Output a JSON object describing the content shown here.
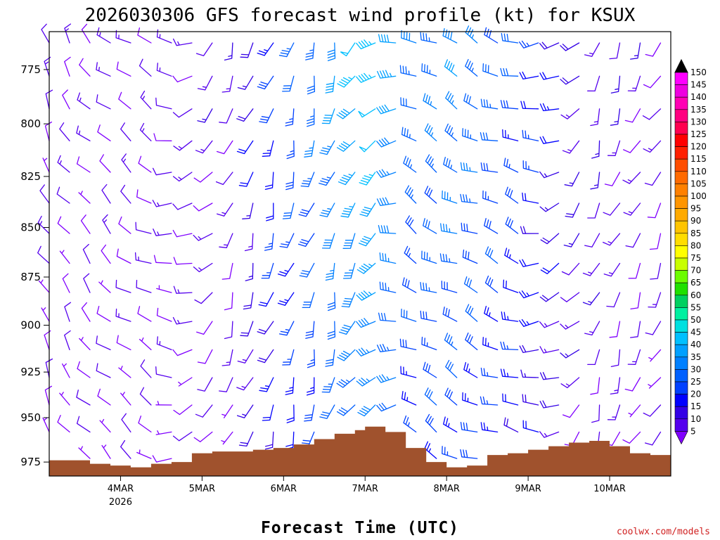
{
  "title": "2026030306 GFS forecast wind profile (kt) for KSUX",
  "credit": "coolwx.com/models",
  "chart_data": {
    "type": "wind-profile",
    "title": "2026030306 GFS forecast wind profile (kt) for KSUX",
    "xlabel": "Forecast Time (UTC)",
    "ylabel": "",
    "x_ticks": [
      {
        "label": "4MAR",
        "sub": "2026",
        "hour": 21
      },
      {
        "label": "5MAR",
        "sub": "",
        "hour": 45
      },
      {
        "label": "6MAR",
        "sub": "",
        "hour": 69
      },
      {
        "label": "7MAR",
        "sub": "",
        "hour": 93
      },
      {
        "label": "8MAR",
        "sub": "",
        "hour": 117
      },
      {
        "label": "9MAR",
        "sub": "",
        "hour": 141
      },
      {
        "label": "10MAR",
        "sub": "",
        "hour": 165
      }
    ],
    "xlim_hours": [
      0,
      183
    ],
    "y_ticks": [
      775,
      800,
      825,
      850,
      875,
      900,
      925,
      950,
      975
    ],
    "ylim_hPa": [
      983,
      758
    ],
    "y_scale": "log",
    "time_step_hours": 6,
    "levels_hPa": [
      763,
      778,
      793,
      808,
      823,
      838,
      853,
      868,
      883,
      898,
      913,
      928,
      943,
      958,
      973
    ],
    "speed_stops_kt": [
      {
        "hour": 0,
        "speed": 10
      },
      {
        "hour": 54,
        "speed": 12
      },
      {
        "hour": 63,
        "speed": 22
      },
      {
        "hour": 78,
        "speed": 32
      },
      {
        "hour": 90,
        "speed": 42
      },
      {
        "hour": 96,
        "speed": 45
      },
      {
        "hour": 108,
        "speed": 32
      },
      {
        "hour": 120,
        "speed": 35
      },
      {
        "hour": 138,
        "speed": 27
      },
      {
        "hour": 156,
        "speed": 15
      },
      {
        "hour": 183,
        "speed": 10
      }
    ],
    "direction_stops_deg": [
      {
        "hour": 0,
        "dir": 330
      },
      {
        "hour": 30,
        "dir": 300
      },
      {
        "hour": 54,
        "dir": 200
      },
      {
        "hour": 84,
        "dir": 195
      },
      {
        "hour": 96,
        "dir": 230
      },
      {
        "hour": 108,
        "dir": 300
      },
      {
        "hour": 138,
        "dir": 290
      },
      {
        "hour": 162,
        "dir": 200
      },
      {
        "hour": 183,
        "dir": 210
      }
    ],
    "surface_pressure_hPa": [
      {
        "hour": 0,
        "p": 974
      },
      {
        "hour": 6,
        "p": 974
      },
      {
        "hour": 12,
        "p": 976
      },
      {
        "hour": 18,
        "p": 977
      },
      {
        "hour": 24,
        "p": 978
      },
      {
        "hour": 30,
        "p": 976
      },
      {
        "hour": 36,
        "p": 975
      },
      {
        "hour": 42,
        "p": 970
      },
      {
        "hour": 48,
        "p": 969
      },
      {
        "hour": 54,
        "p": 969
      },
      {
        "hour": 60,
        "p": 968
      },
      {
        "hour": 66,
        "p": 967
      },
      {
        "hour": 72,
        "p": 965
      },
      {
        "hour": 78,
        "p": 962
      },
      {
        "hour": 84,
        "p": 959
      },
      {
        "hour": 90,
        "p": 957
      },
      {
        "hour": 93,
        "p": 955
      },
      {
        "hour": 99,
        "p": 958
      },
      {
        "hour": 105,
        "p": 967
      },
      {
        "hour": 111,
        "p": 975
      },
      {
        "hour": 117,
        "p": 978
      },
      {
        "hour": 123,
        "p": 977
      },
      {
        "hour": 129,
        "p": 971
      },
      {
        "hour": 135,
        "p": 970
      },
      {
        "hour": 141,
        "p": 968
      },
      {
        "hour": 147,
        "p": 966
      },
      {
        "hour": 153,
        "p": 964
      },
      {
        "hour": 159,
        "p": 963
      },
      {
        "hour": 165,
        "p": 966
      },
      {
        "hour": 171,
        "p": 970
      },
      {
        "hour": 177,
        "p": 971
      },
      {
        "hour": 183,
        "p": 973
      }
    ],
    "surface_color": "#a0522d",
    "colorbar": {
      "unit": "kt",
      "labels": [
        150,
        145,
        140,
        135,
        130,
        125,
        120,
        115,
        110,
        105,
        100,
        95,
        90,
        85,
        80,
        75,
        70,
        65,
        60,
        55,
        50,
        45,
        40,
        35,
        30,
        25,
        20,
        15,
        10,
        5
      ],
      "colors": [
        "#ff00ff",
        "#ee00e0",
        "#ff00b4",
        "#ff0080",
        "#ff0050",
        "#ff0000",
        "#ff2000",
        "#ff4d00",
        "#ff6a00",
        "#ff8000",
        "#ff9500",
        "#ffaa00",
        "#ffc400",
        "#ffdd00",
        "#ffff00",
        "#c8ff00",
        "#6cfc00",
        "#20e000",
        "#00d060",
        "#00f0a0",
        "#00e0e0",
        "#00c0ff",
        "#00a0ff",
        "#0080ff",
        "#0060ff",
        "#0040ff",
        "#0000ff",
        "#3300e6",
        "#5500ee",
        "#8000ff"
      ]
    }
  }
}
